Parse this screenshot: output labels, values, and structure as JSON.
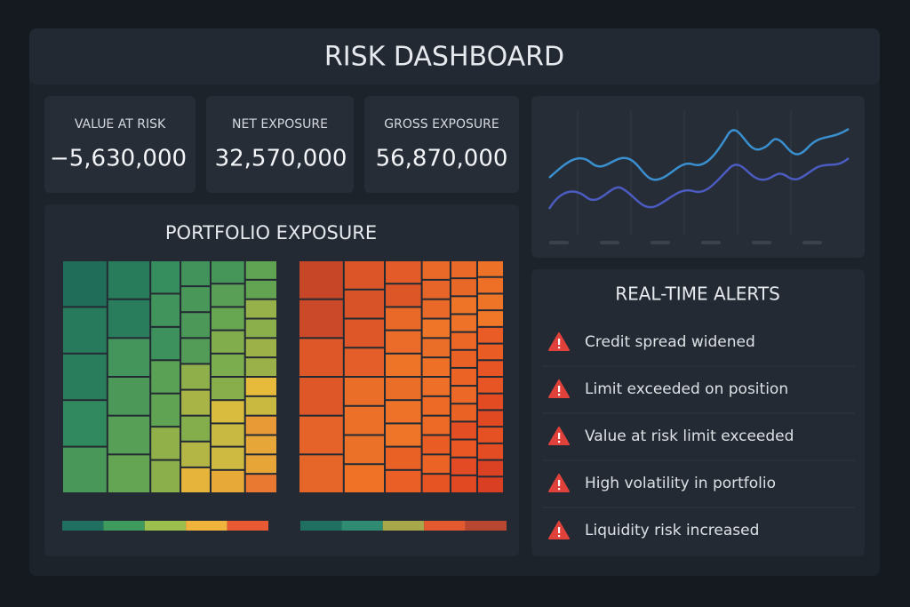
{
  "header": {
    "title": "RISK DASHBOARD"
  },
  "kpis": [
    {
      "label": "VALUE AT RISK",
      "value": "−5,630,000"
    },
    {
      "label": "NET EXPOSURE",
      "value": "32,570,000"
    },
    {
      "label": "GROSS EXPOSURE",
      "value": "56,870,000"
    }
  ],
  "portfolio": {
    "title": "PORTFOLIO EXPOSURE"
  },
  "alerts": {
    "title": "REAL-TIME ALERTS",
    "items": [
      "Credit spread widened",
      "Limit exceeded on position",
      "Value at risk limit exceeded",
      "High volatility in portfolio",
      "Liquidity risk increased"
    ]
  }
}
